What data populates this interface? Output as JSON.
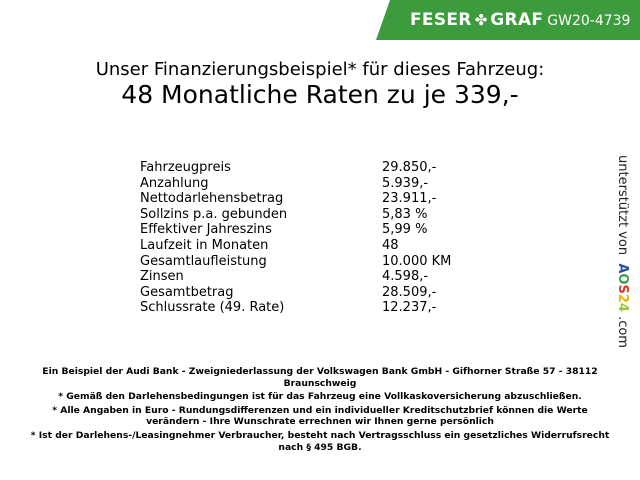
{
  "banner": {
    "brand_left": "FESER",
    "brand_right": "GRAF",
    "code": "GW20-4739",
    "color": "#3c9b3c",
    "icon": "clover-icon"
  },
  "heading": {
    "line1": "Unser Finanzierungsbeispiel* für dieses Fahrzeug:",
    "line2": "48 Monatliche Raten zu je 339,-"
  },
  "rows": [
    {
      "label": "Fahrzeugpreis",
      "value": "29.850,-"
    },
    {
      "label": "Anzahlung",
      "value": "5.939,-"
    },
    {
      "label": "Nettodarlehensbetrag",
      "value": "23.911,-"
    },
    {
      "label": "Sollzins p.a. gebunden",
      "value": "5,83 %"
    },
    {
      "label": "Effektiver Jahreszins",
      "value": "5,99 %"
    },
    {
      "label": "Laufzeit in Monaten",
      "value": "48"
    },
    {
      "label": "Gesamtlaufleistung",
      "value": "10.000 KM"
    },
    {
      "label": "Zinsen",
      "value": "4.598,-"
    },
    {
      "label": "Gesamtbetrag",
      "value": "28.509,-"
    },
    {
      "label": "Schlussrate (49. Rate)",
      "value": "12.237,-"
    }
  ],
  "side": {
    "prefix": "unterstützt von",
    "a": "A",
    "o": "O",
    "s": "S",
    "n2": "2",
    "n4": "4",
    "suffix": ".com"
  },
  "footer": {
    "bank": "Ein Beispiel der Audi Bank - Zweigniederlassung der Volkswagen Bank GmbH - Gifhorner Straße 57 - 38112 Braunschweig",
    "note1": "* Gemäß den Darlehensbedingungen ist für das Fahrzeug eine Vollkaskoversicherung abzuschließen.",
    "note2": "* Alle Angaben in Euro - Rundungsdifferenzen und ein individueller Kreditschutzbrief können die Werte verändern - Ihre Wunschrate errechnen wir Ihnen gerne persönlich",
    "note3": "* Ist der Darlehens-/Leasingnehmer Verbraucher, besteht nach Vertragsschluss ein gesetzliches Widerrufsrecht nach § 495 BGB."
  }
}
